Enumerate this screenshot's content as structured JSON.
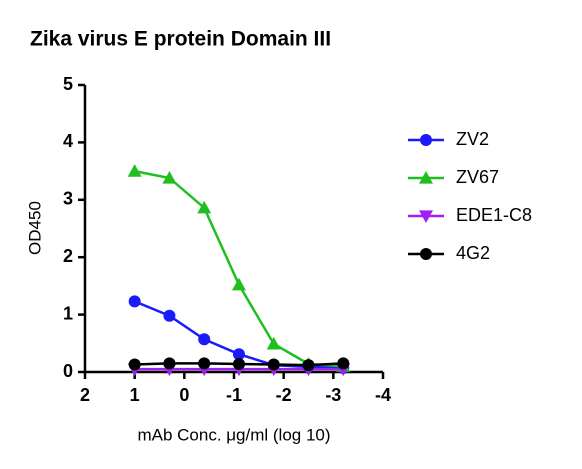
{
  "chart_data": {
    "type": "line",
    "title": "Zika virus E protein Domain III",
    "x_label": "mAb Conc. μg/ml (log 10)",
    "y_label": "OD450",
    "x": [
      1,
      0.3,
      -0.4,
      -1.1,
      -1.8,
      -2.5,
      -3.2
    ],
    "series": [
      {
        "name": "ZV2",
        "color": "#1a1aff",
        "marker": "circle",
        "values": [
          1.23,
          0.98,
          0.57,
          0.31,
          0.12,
          0.09,
          0.07
        ]
      },
      {
        "name": "ZV67",
        "color": "#1fbf1f",
        "marker": "triangle-up",
        "values": [
          3.5,
          3.38,
          2.86,
          1.52,
          0.49,
          0.14,
          0.1
        ]
      },
      {
        "name": "EDE1-C8",
        "color": "#a020f0",
        "marker": "triangle-down",
        "values": [
          0.05,
          0.05,
          0.05,
          0.05,
          0.05,
          0.05,
          0.05
        ]
      },
      {
        "name": "4G2",
        "color": "#000000",
        "marker": "circle",
        "values": [
          0.13,
          0.15,
          0.15,
          0.14,
          0.13,
          0.12,
          0.15
        ]
      }
    ],
    "xlim": [
      2,
      -4
    ],
    "xticks": [
      2,
      1,
      0,
      -1,
      -2,
      -3,
      -4
    ],
    "ylim": [
      0,
      5
    ],
    "yticks": [
      0,
      1,
      2,
      3,
      4,
      5
    ],
    "legend": "right"
  }
}
